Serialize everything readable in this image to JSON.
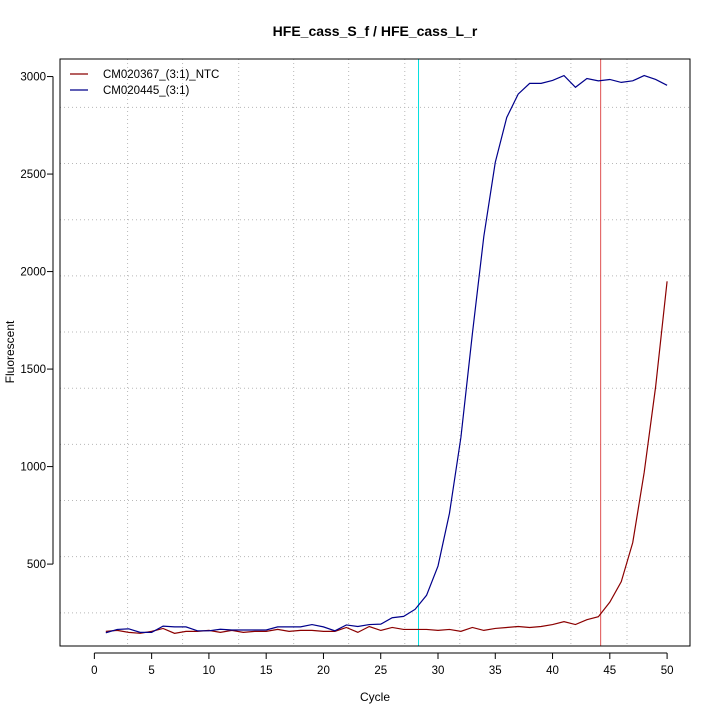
{
  "chart_data": {
    "type": "line",
    "title": "HFE_cass_S_f / HFE_cass_L_r",
    "xlabel": "Cycle",
    "ylabel": "Fluorescent",
    "xlim": [
      -3,
      52
    ],
    "ylim": [
      80,
      3090
    ],
    "x_ticks": [
      0,
      5,
      10,
      15,
      20,
      25,
      30,
      35,
      40,
      45,
      50
    ],
    "y_ticks": [
      500,
      1000,
      1500,
      2000,
      2500,
      3000
    ],
    "grid": true,
    "grid_x": [
      2.9,
      7.7,
      12.6,
      17.4,
      22.2,
      27.1,
      31.9,
      36.8,
      41.6,
      46.5
    ],
    "grid_y": [
      250,
      538,
      826,
      1114,
      1402,
      1690,
      1978,
      2266,
      2554,
      2842
    ],
    "legend_position": "top-left",
    "x": [
      1,
      2,
      3,
      4,
      5,
      6,
      7,
      8,
      9,
      10,
      11,
      12,
      13,
      14,
      15,
      16,
      17,
      18,
      19,
      20,
      21,
      22,
      23,
      24,
      25,
      26,
      27,
      28,
      29,
      30,
      31,
      32,
      33,
      34,
      35,
      36,
      37,
      38,
      39,
      40,
      41,
      42,
      43,
      44,
      45,
      46,
      47,
      48,
      49,
      50
    ],
    "series": [
      {
        "name": "CM020367_(3:1)_NTC",
        "color": "#8b0000",
        "values": [
          155,
          160,
          150,
          145,
          155,
          170,
          145,
          155,
          155,
          160,
          150,
          160,
          150,
          155,
          155,
          165,
          155,
          160,
          160,
          155,
          155,
          175,
          150,
          180,
          160,
          175,
          165,
          165,
          165,
          160,
          165,
          155,
          175,
          160,
          170,
          175,
          180,
          175,
          180,
          190,
          205,
          190,
          215,
          230,
          305,
          410,
          610,
          970,
          1410,
          1950
        ]
      },
      {
        "name": "CM020445_(3:1)",
        "color": "#00008b",
        "values": [
          148,
          165,
          168,
          150,
          150,
          182,
          178,
          178,
          158,
          158,
          166,
          162,
          162,
          162,
          162,
          178,
          178,
          178,
          190,
          178,
          158,
          188,
          180,
          190,
          192,
          225,
          232,
          268,
          340,
          490,
          760,
          1150,
          1680,
          2180,
          2560,
          2790,
          2910,
          2965,
          2965,
          2980,
          3005,
          2945,
          2990,
          2978,
          2985,
          2970,
          2978,
          3005,
          2985,
          2955
        ]
      }
    ],
    "vlines": [
      {
        "x": 28.3,
        "color": "#00e0e0"
      },
      {
        "x": 44.2,
        "color": "#e05050"
      }
    ]
  }
}
